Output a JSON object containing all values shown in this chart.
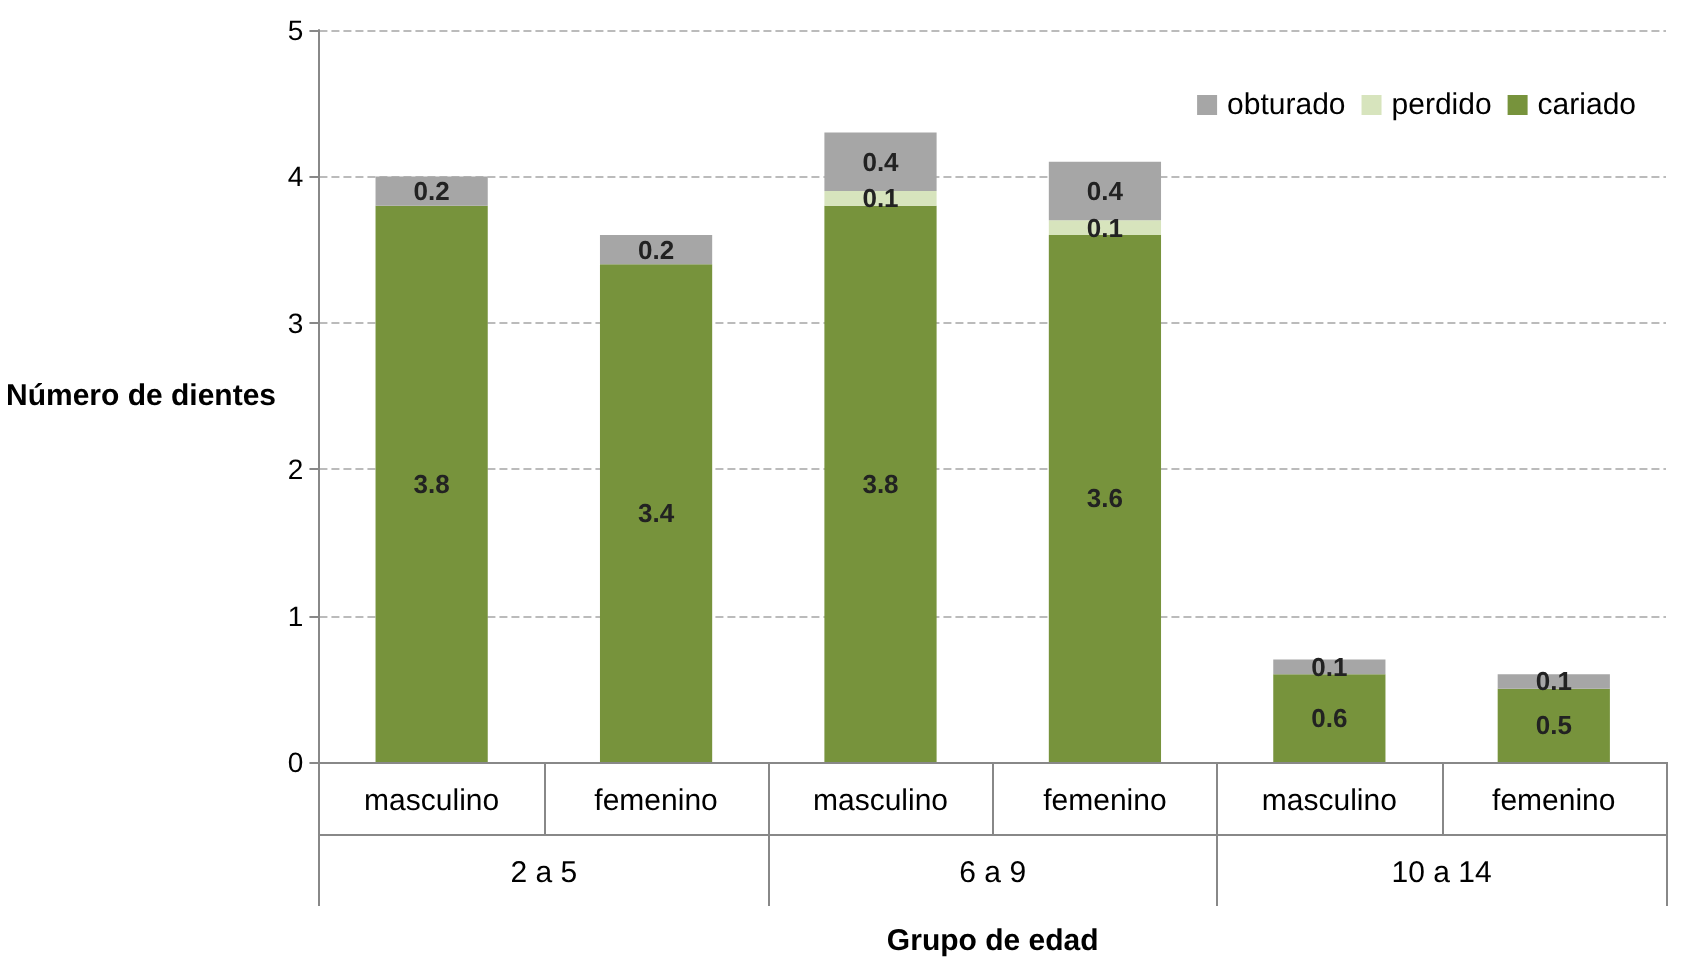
{
  "chart_data": {
    "type": "bar",
    "stacked": true,
    "xlabel": "Grupo de edad",
    "ylabel": "Número de dientes",
    "categories": [
      "masculino",
      "femenino",
      "masculino",
      "femenino",
      "masculino",
      "femenino"
    ],
    "annotations": [
      "2 a 5",
      "6 a 9",
      "10 a 14"
    ],
    "series": [
      {
        "name": "cariado",
        "color": "#77933c",
        "values": [
          3.8,
          3.4,
          3.8,
          3.6,
          0.6,
          0.5
        ],
        "value_labels": [
          "3.8",
          "3.4",
          "3.8",
          "3.6",
          "0.6",
          "0.5"
        ]
      },
      {
        "name": "perdido",
        "color": "#d7e4bd",
        "values": [
          0,
          0,
          0.1,
          0.1,
          0,
          0
        ],
        "value_labels": [
          null,
          null,
          "0.1",
          "0.1",
          null,
          null
        ]
      },
      {
        "name": "obturado",
        "color": "#a6a6a6",
        "values": [
          0.2,
          0.2,
          0.4,
          0.4,
          0.1,
          0.1
        ],
        "value_labels": [
          "0.2",
          "0.2",
          "0.4",
          "0.4",
          "0.1",
          "0.1"
        ]
      }
    ],
    "ylim": [
      0,
      5
    ],
    "yticks": [
      0,
      1,
      2,
      3,
      4,
      5
    ],
    "grid": "y",
    "legend": "top right"
  }
}
